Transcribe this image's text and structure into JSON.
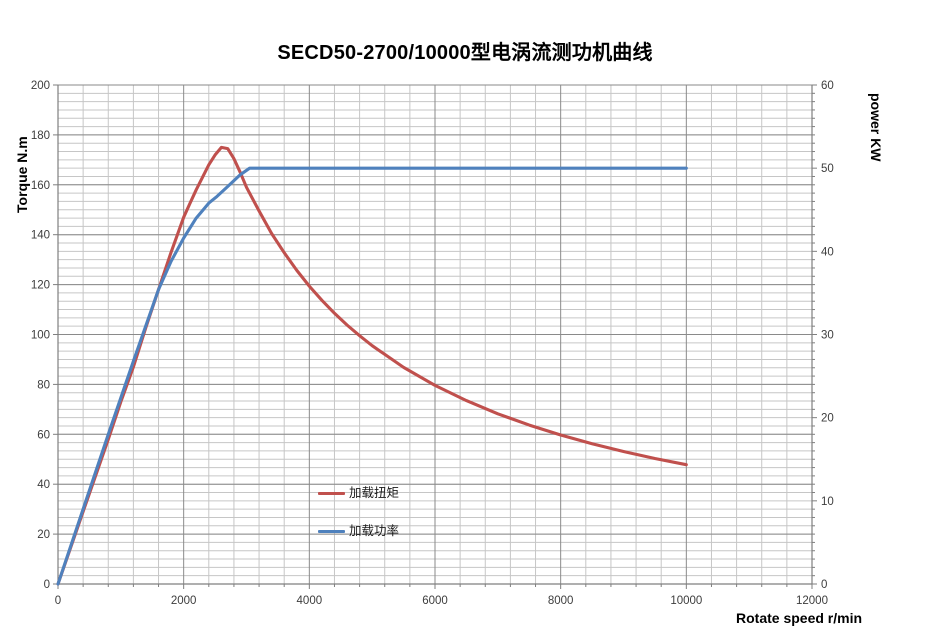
{
  "title": "SECD50-2700/10000型电涡流测功机曲线",
  "chart_data": {
    "type": "line",
    "title": "SECD50-2700/10000型电涡流测功机曲线",
    "grid": true,
    "legend_position": "inside-center-bottom",
    "x_axis": {
      "label": "Rotate speed r/min",
      "min": 0,
      "max": 12000,
      "ticks": [
        0,
        2000,
        4000,
        6000,
        8000,
        10000,
        12000
      ],
      "minor_interval": 400
    },
    "y_left": {
      "label": "Torque N.m",
      "min": 0,
      "max": 200,
      "ticks": [
        0,
        20,
        40,
        60,
        80,
        100,
        120,
        140,
        160,
        180,
        200
      ]
    },
    "y_right": {
      "label": "power KW",
      "min": 0,
      "max": 60,
      "ticks": [
        0,
        10,
        20,
        30,
        40,
        50,
        60
      ],
      "minor_interval": 1
    },
    "colors": {
      "minor_grid": "#c6c6c6",
      "major_grid": "#8a8a8a",
      "axis_line": "#7f7f7f",
      "tick_label": "#3d3d3d"
    },
    "series": [
      {
        "id": "torque",
        "name": "加载扭矩",
        "axis": "left",
        "color": "#C0504D",
        "points": [
          [
            0,
            0
          ],
          [
            200,
            14.5
          ],
          [
            400,
            29
          ],
          [
            600,
            43.5
          ],
          [
            800,
            58
          ],
          [
            1000,
            73
          ],
          [
            1200,
            87
          ],
          [
            1400,
            103
          ],
          [
            1600,
            118
          ],
          [
            1800,
            133
          ],
          [
            2000,
            147
          ],
          [
            2100,
            152.5
          ],
          [
            2200,
            158
          ],
          [
            2300,
            163
          ],
          [
            2400,
            168
          ],
          [
            2500,
            172
          ],
          [
            2600,
            175
          ],
          [
            2700,
            174.5
          ],
          [
            2800,
            170.5
          ],
          [
            2900,
            165
          ],
          [
            3000,
            159
          ],
          [
            3200,
            149.5
          ],
          [
            3400,
            140.5
          ],
          [
            3600,
            132.8
          ],
          [
            3800,
            125.7
          ],
          [
            4000,
            119.4
          ],
          [
            4200,
            113.7
          ],
          [
            4400,
            108.5
          ],
          [
            4600,
            103.8
          ],
          [
            4800,
            99.5
          ],
          [
            5000,
            95.5
          ],
          [
            5500,
            86.8
          ],
          [
            6000,
            79.6
          ],
          [
            6500,
            73.5
          ],
          [
            7000,
            68.2
          ],
          [
            7500,
            63.7
          ],
          [
            8000,
            59.7
          ],
          [
            8500,
            56.2
          ],
          [
            9000,
            53.1
          ],
          [
            9500,
            50.3
          ],
          [
            10000,
            47.8
          ]
        ]
      },
      {
        "id": "power",
        "name": "加载功率",
        "axis": "right",
        "color": "#4F81BD",
        "points": [
          [
            0,
            0
          ],
          [
            400,
            9
          ],
          [
            800,
            18
          ],
          [
            1200,
            26.8
          ],
          [
            1600,
            35.4
          ],
          [
            1800,
            38.8
          ],
          [
            2000,
            41.6
          ],
          [
            2200,
            44
          ],
          [
            2400,
            45.8
          ],
          [
            2530,
            46.6
          ],
          [
            2700,
            47.8
          ],
          [
            2900,
            49.2
          ],
          [
            3050,
            50
          ],
          [
            3500,
            50
          ],
          [
            4000,
            50
          ],
          [
            5000,
            50
          ],
          [
            6000,
            50
          ],
          [
            7000,
            50
          ],
          [
            8000,
            50
          ],
          [
            9000,
            50
          ],
          [
            10000,
            50
          ]
        ]
      }
    ]
  }
}
